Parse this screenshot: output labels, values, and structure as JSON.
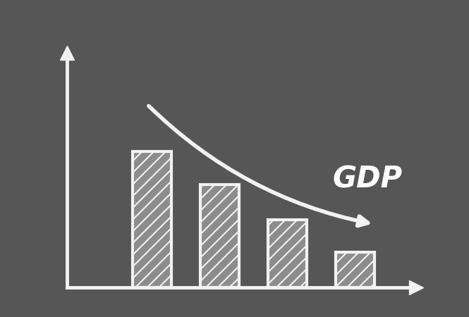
{
  "chart_data": {
    "type": "bar",
    "categories": [
      null,
      null,
      null,
      null
    ],
    "values": [
      58,
      44,
      29,
      15
    ],
    "color": "#8c8c8c",
    "ylim": [
      0,
      100
    ],
    "yticks": [],
    "tick_labels": false,
    "annotations": [
      "GDP"
    ]
  }
}
